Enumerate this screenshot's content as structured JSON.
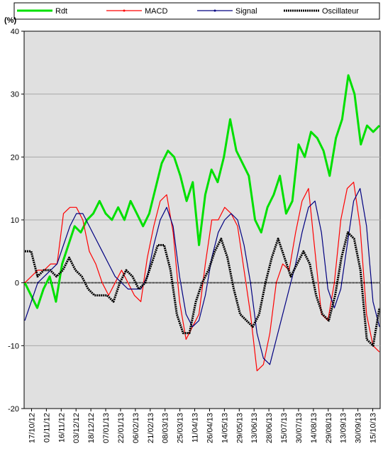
{
  "chart_data": {
    "type": "line",
    "ylabel": "(%)",
    "ylim": [
      -20,
      40
    ],
    "yticks": [
      -20,
      -10,
      0,
      10,
      20,
      30,
      40
    ],
    "grid": true,
    "legend_position": "top",
    "x_tick_labels": [
      "17/10/12",
      "01/11/12",
      "16/11/12",
      "03/12/12",
      "18/12/12",
      "07/01/13",
      "22/01/13",
      "06/02/13",
      "21/02/13",
      "08/03/13",
      "25/03/13",
      "11/04/13",
      "26/04/13",
      "14/05/13",
      "29/05/13",
      "13/06/13",
      "28/06/13",
      "15/07/13",
      "30/07/13",
      "14/08/13",
      "29/08/13",
      "13/09/13",
      "30/09/13",
      "15/10/13"
    ],
    "series": [
      {
        "name": "Rdt",
        "color": "#00e000",
        "values": [
          0,
          -2,
          -4,
          -1,
          1,
          -3,
          3,
          6,
          9,
          8,
          10,
          11,
          13,
          11,
          10,
          12,
          10,
          13,
          11,
          9,
          11,
          15,
          19,
          21,
          20,
          17,
          13,
          16,
          6,
          14,
          18,
          16,
          20,
          26,
          21,
          19,
          17,
          10,
          8,
          12,
          14,
          17,
          11,
          13,
          22,
          20,
          24,
          23,
          21,
          17,
          23,
          26,
          33,
          30,
          22,
          25,
          24,
          25
        ]
      },
      {
        "name": "MACD",
        "color": "#ff0000",
        "values": [
          0,
          1,
          2,
          2,
          3,
          3,
          11,
          12,
          12,
          10,
          5,
          3,
          0,
          -2,
          0,
          2,
          0,
          -2,
          -3,
          4,
          9,
          13,
          14,
          8,
          -3,
          -9,
          -7,
          -5,
          3,
          10,
          10,
          12,
          11,
          9,
          2,
          -5,
          -14,
          -13,
          -8,
          0,
          3,
          2,
          8,
          13,
          15,
          5,
          -5,
          -6,
          0,
          10,
          15,
          16,
          9,
          -5,
          -10,
          -11
        ]
      },
      {
        "name": "Signal",
        "color": "#000080",
        "values": [
          -6,
          -3,
          0,
          1,
          2,
          3,
          6,
          9,
          11,
          11,
          9,
          7,
          5,
          3,
          1,
          0,
          -1,
          -1,
          -1,
          1,
          6,
          10,
          12,
          9,
          1,
          -5,
          -7,
          -6,
          -2,
          4,
          8,
          10,
          11,
          10,
          6,
          0,
          -8,
          -12,
          -13,
          -9,
          -5,
          -1,
          3,
          8,
          12,
          13,
          8,
          -1,
          -4,
          -1,
          6,
          13,
          15,
          9,
          -3,
          -7
        ]
      },
      {
        "name": "Oscillateur",
        "color": "#000000",
        "values": [
          5,
          5,
          1,
          2,
          2,
          1,
          2,
          4,
          2,
          1,
          -1,
          -2,
          -2,
          -2,
          -3,
          0,
          2,
          1,
          -1,
          0,
          3,
          6,
          6,
          2,
          -5,
          -8,
          -8,
          -3,
          0,
          2,
          5,
          7,
          4,
          -1,
          -5,
          -6,
          -7,
          -5,
          0,
          4,
          7,
          4,
          1,
          3,
          5,
          3,
          -2,
          -5,
          -6,
          -2,
          4,
          8,
          7,
          2,
          -9,
          -10,
          -4
        ]
      }
    ]
  }
}
